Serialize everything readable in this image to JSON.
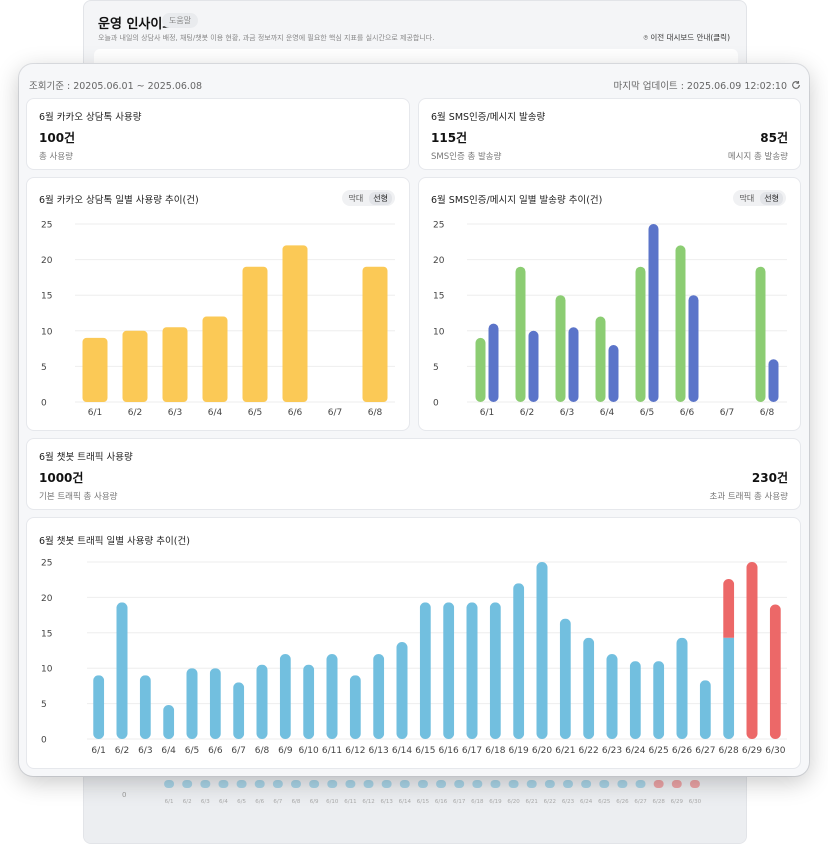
{
  "background_window": {
    "title": "운영 인사이트",
    "tag": "도움말",
    "subtitle": "오늘과 내일의 상담사 배정, 채팅/챗봇 이용 현황, 과금 정보까지 운영에 필요한 핵심 지표를 실시간으로 제공합니다.",
    "link": "이전 대시보드 안내(클릭)",
    "bottom_axis_zero": "0",
    "bottom_labels": [
      "6/1",
      "6/2",
      "6/3",
      "6/4",
      "6/5",
      "6/6",
      "6/7",
      "6/8",
      "6/9",
      "6/10",
      "6/11",
      "6/12",
      "6/13",
      "6/14",
      "6/15",
      "6/16",
      "6/17",
      "6/18",
      "6/19",
      "6/20",
      "6/21",
      "6/22",
      "6/23",
      "6/24",
      "6/25",
      "6/26",
      "6/27",
      "6/28",
      "6/29",
      "6/30"
    ]
  },
  "header": {
    "period": "조회기준 : 20205.06.01 ~ 2025.06.08",
    "last_update": "마지막 업데이트 : 2025.06.09  12:02:10"
  },
  "kakao_usage": {
    "title": "6월 카카오 상담톡 사용량",
    "value": "100건",
    "label": "총 사용량"
  },
  "sms_usage": {
    "title": "6월 SMS인증/메시지 발송량",
    "sms_value": "115건",
    "sms_label": "SMS인증 총 발송량",
    "msg_value": "85건",
    "msg_label": "메시지 총 발송량"
  },
  "kakao_chart_card": {
    "title": "6월 카카오 상담톡 일별 사용량 추이(건)",
    "toggle_bar": "막대",
    "toggle_line": "선형"
  },
  "sms_chart_card": {
    "title": "6월 SMS인증/메시지 일별 발송량 추이(건)",
    "toggle_bar": "막대",
    "toggle_line": "선형"
  },
  "chatbot_usage": {
    "title": "6월 챗봇 트래픽 사용량",
    "base_value": "1000건",
    "base_label": "기본 트래픽 총 사용량",
    "over_value": "230건",
    "over_label": "초과 트래픽 총 사용량"
  },
  "chatbot_chart_card": {
    "title": "6월 챗봇 트래픽 일별 사용량 추이(건)"
  },
  "colors": {
    "kakao": "#fbc956",
    "sms": "#8ccd73",
    "message": "#5b74c9",
    "chatbot_base": "#72bfdf",
    "chatbot_over": "#ec6868",
    "grid": "#eeeeee",
    "tick": "#444444"
  },
  "chart_data": [
    {
      "type": "bar",
      "categories": [
        "6/1",
        "6/2",
        "6/3",
        "6/4",
        "6/5",
        "6/6",
        "6/7",
        "6/8"
      ],
      "values": [
        9,
        10,
        10.5,
        12,
        19,
        22,
        0,
        19
      ],
      "ylim": [
        0,
        25
      ],
      "yticks": [
        0,
        5,
        10,
        15,
        20,
        25
      ]
    },
    {
      "type": "bar",
      "categories": [
        "6/1",
        "6/2",
        "6/3",
        "6/4",
        "6/5",
        "6/6",
        "6/7",
        "6/8"
      ],
      "series": [
        {
          "values": [
            9,
            19,
            15,
            12,
            19,
            22,
            0,
            19
          ]
        },
        {
          "values": [
            11,
            10,
            10.5,
            8,
            25,
            15,
            0,
            6
          ]
        }
      ],
      "ylim": [
        0,
        25
      ],
      "yticks": [
        0,
        5,
        10,
        15,
        20,
        25
      ]
    },
    {
      "type": "bar",
      "stacked": true,
      "categories": [
        "6/1",
        "6/2",
        "6/3",
        "6/4",
        "6/5",
        "6/6",
        "6/7",
        "6/8",
        "6/9",
        "6/10",
        "6/11",
        "6/12",
        "6/13",
        "6/14",
        "6/15",
        "6/16",
        "6/17",
        "6/18",
        "6/19",
        "6/20",
        "6/21",
        "6/22",
        "6/23",
        "6/24",
        "6/25",
        "6/26",
        "6/27",
        "6/28",
        "6/29",
        "6/30"
      ],
      "series": [
        {
          "values": [
            9,
            19.3,
            9,
            4.8,
            10,
            10,
            8,
            10.5,
            12,
            10.5,
            12,
            9,
            12,
            13.7,
            19.3,
            19.3,
            19.3,
            19.3,
            22,
            25,
            17,
            14.3,
            12,
            11,
            11,
            14.3,
            8.3,
            14.3,
            0,
            0
          ]
        },
        {
          "values": [
            0,
            0,
            0,
            0,
            0,
            0,
            0,
            0,
            0,
            0,
            0,
            0,
            0,
            0,
            0,
            0,
            0,
            0,
            0,
            0,
            0,
            0,
            0,
            0,
            0,
            0,
            0,
            8.3,
            25,
            19
          ]
        }
      ],
      "ylim": [
        0,
        25
      ],
      "yticks": [
        0,
        5,
        10,
        15,
        20,
        25
      ]
    }
  ]
}
